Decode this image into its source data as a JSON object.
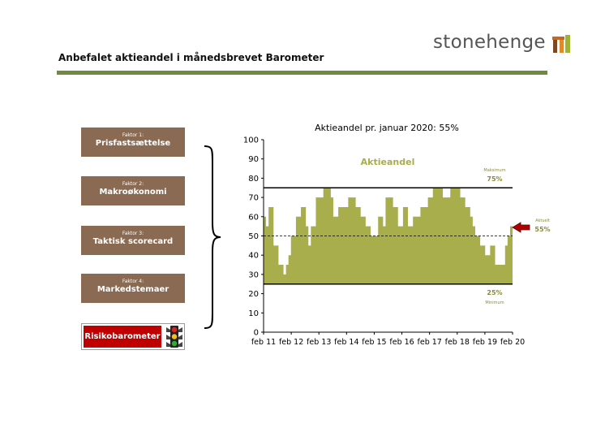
{
  "page": {
    "title": "Anbefalet aktieandel i månedsbrevet Barometer"
  },
  "logo": {
    "text": "stonehenge",
    "icon": "stonehenge-stones-icon"
  },
  "colors": {
    "olive": "#A8AE4B",
    "rule": "#6E8A3A",
    "factor_box": "#8B6A53",
    "risk_red": "#C00000",
    "text_olive": "#8A8A3A",
    "arrow": "#B00000"
  },
  "factors": [
    {
      "num": "Faktor 1:",
      "name": "Prisfastsættelse"
    },
    {
      "num": "Faktor 2:",
      "name": "Makroøkonomi"
    },
    {
      "num": "Faktor 3:",
      "name": "Taktisk scorecard"
    },
    {
      "num": "Faktor 4:",
      "name": "Markedstemaer"
    }
  ],
  "risk": {
    "label": "Risikobarometer",
    "icon": "traffic-light-icon"
  },
  "chart_data": {
    "type": "area",
    "title": "Aktieandel pr. januar 2020: 55%",
    "series_label": "Aktieandel",
    "ylim": [
      0,
      100
    ],
    "yticks": [
      0,
      10,
      20,
      30,
      40,
      50,
      60,
      70,
      80,
      90,
      100
    ],
    "xlim": [
      2011.083,
      2020.083
    ],
    "xtick_labels": [
      "feb 11",
      "feb 12",
      "feb 13",
      "feb 14",
      "feb 15",
      "feb 16",
      "feb 17",
      "feb 18",
      "feb 19",
      "feb 20"
    ],
    "xticks": [
      2011.083,
      2012.083,
      2013.083,
      2014.083,
      2015.083,
      2016.083,
      2017.083,
      2018.083,
      2019.083,
      2020.083
    ],
    "max_line": {
      "value": 75,
      "label": "Maksimum",
      "value_label": "75%"
    },
    "min_line": {
      "value": 25,
      "label": "Minimum",
      "value_label": "25%"
    },
    "mid_line": {
      "value": 50
    },
    "current": {
      "label": "Aktuelt",
      "value_label": "55%",
      "value": 55
    },
    "values": [
      60,
      55,
      65,
      65,
      45,
      45,
      35,
      35,
      30,
      35,
      40,
      50,
      50,
      60,
      60,
      65,
      65,
      55,
      45,
      55,
      55,
      70,
      70,
      70,
      75,
      75,
      75,
      70,
      60,
      60,
      65,
      65,
      65,
      65,
      70,
      70,
      70,
      65,
      65,
      60,
      60,
      55,
      55,
      50,
      50,
      50,
      60,
      60,
      55,
      70,
      70,
      70,
      65,
      65,
      55,
      55,
      65,
      65,
      55,
      55,
      60,
      60,
      60,
      65,
      65,
      65,
      70,
      70,
      75,
      75,
      75,
      75,
      70,
      70,
      70,
      75,
      75,
      75,
      75,
      70,
      70,
      65,
      65,
      60,
      55,
      50,
      50,
      45,
      45,
      40,
      40,
      45,
      45,
      35,
      35,
      35,
      35,
      45,
      50,
      55
    ]
  }
}
